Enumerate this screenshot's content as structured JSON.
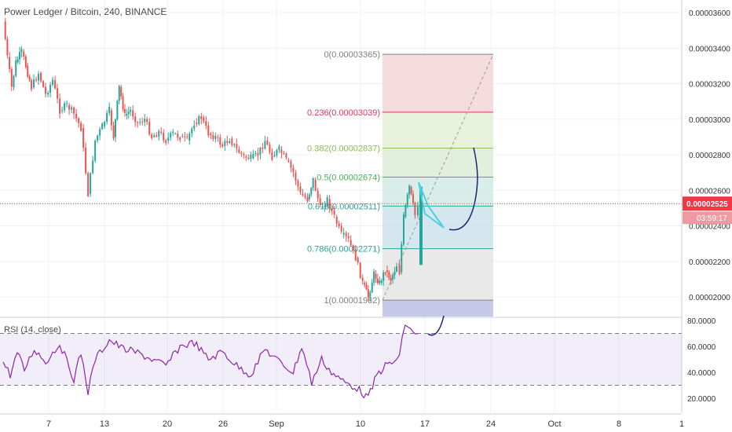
{
  "header": {
    "title": "Power Ledger / Bitcoin, 240, BINANCE"
  },
  "rsi": {
    "title": "RSI (14, close)"
  },
  "chart_data": {
    "type": "candlestick",
    "price_axis": {
      "labels": [
        "0.00003600",
        "0.00003400",
        "0.00003200",
        "0.00003000",
        "0.00002800",
        "0.00002600",
        "0.00002400",
        "0.00002200",
        "0.00002000"
      ],
      "values": [
        3.6e-05,
        3.4e-05,
        3.2e-05,
        3e-05,
        2.8e-05,
        2.6e-05,
        2.4e-05,
        2.2e-05,
        2e-05
      ]
    },
    "current_price": {
      "label": "0.00002525",
      "value": 2.525e-05,
      "countdown": "03:59:17",
      "color": "#f23645"
    },
    "rsi_axis": {
      "labels": [
        "80.0000",
        "60.0000",
        "40.0000",
        "20.0000"
      ],
      "values": [
        80,
        60,
        40,
        20
      ],
      "band": [
        30,
        70
      ]
    },
    "x_axis": {
      "labels": [
        "7",
        "13",
        "20",
        "26",
        "Sep",
        "10",
        "17",
        "24",
        "Oct",
        "8",
        "1"
      ]
    },
    "fib_levels": [
      {
        "label": "0(0.00003365)",
        "value": 3.365e-05,
        "color": "#808080"
      },
      {
        "label": "0.236(0.00003039)",
        "value": 3.039e-05,
        "color": "#e0395a"
      },
      {
        "label": "0.382(0.00002837)",
        "value": 2.837e-05,
        "color": "#8bbf52"
      },
      {
        "label": "0.5(0.00002674)",
        "value": 2.674e-05,
        "color": "#4caf50"
      },
      {
        "label": "0.618(0.00002511)",
        "value": 2.511e-05,
        "color": "#26a69a"
      },
      {
        "label": "0.786(0.00002271)",
        "value": 2.271e-05,
        "color": "#26a69a"
      },
      {
        "label": "1(0.00001982)",
        "value": 1.982e-05,
        "color": "#808080"
      }
    ],
    "price_path": [
      [
        3.55e-05,
        0
      ],
      [
        3.35e-05,
        3
      ],
      [
        3.18e-05,
        6
      ],
      [
        3.32e-05,
        9
      ],
      [
        3.38e-05,
        13
      ],
      [
        3.3e-05,
        16
      ],
      [
        3.18e-05,
        20
      ],
      [
        3.26e-05,
        25
      ],
      [
        3.14e-05,
        30
      ],
      [
        3.22e-05,
        35
      ],
      [
        3.05e-05,
        40
      ],
      [
        3.08e-05,
        45
      ],
      [
        3.03e-05,
        50
      ],
      [
        2.95e-05,
        55
      ],
      [
        2.58e-05,
        60
      ],
      [
        2.88e-05,
        65
      ],
      [
        2.96e-05,
        70
      ],
      [
        3.05e-05,
        75
      ],
      [
        2.9e-05,
        78
      ],
      [
        3.18e-05,
        82
      ],
      [
        3.02e-05,
        86
      ],
      [
        3.05e-05,
        90
      ],
      [
        2.98e-05,
        95
      ],
      [
        3e-05,
        100
      ],
      [
        2.9e-05,
        105
      ],
      [
        2.93e-05,
        110
      ],
      [
        2.88e-05,
        115
      ],
      [
        2.92e-05,
        120
      ],
      [
        2.9e-05,
        125
      ],
      [
        2.88e-05,
        130
      ],
      [
        2.98e-05,
        135
      ],
      [
        3.01e-05,
        140
      ],
      [
        2.92e-05,
        145
      ],
      [
        2.9e-05,
        150
      ],
      [
        2.85e-05,
        155
      ],
      [
        2.89e-05,
        160
      ],
      [
        2.83e-05,
        165
      ],
      [
        2.79e-05,
        170
      ],
      [
        2.78e-05,
        175
      ],
      [
        2.8e-05,
        180
      ],
      [
        2.88e-05,
        185
      ],
      [
        2.79e-05,
        190
      ],
      [
        2.83e-05,
        195
      ],
      [
        2.77e-05,
        200
      ],
      [
        2.7e-05,
        205
      ],
      [
        2.58e-05,
        210
      ],
      [
        2.55e-05,
        215
      ],
      [
        2.66e-05,
        219
      ],
      [
        2.5e-05,
        224
      ],
      [
        2.55e-05,
        229
      ],
      [
        2.45e-05,
        234
      ],
      [
        2.35e-05,
        239
      ],
      [
        2.32e-05,
        244
      ],
      [
        2.22e-05,
        249
      ],
      [
        2.08e-05,
        254
      ],
      [
        2e-05,
        258
      ],
      [
        2.13e-05,
        262
      ],
      [
        2.08e-05,
        266
      ],
      [
        2.15e-05,
        270
      ],
      [
        2.1e-05,
        274
      ],
      [
        2.18e-05,
        278
      ],
      [
        2.14e-05,
        280
      ],
      [
        2.45e-05,
        283
      ],
      [
        2.62e-05,
        287
      ],
      [
        2.46e-05,
        291
      ],
      [
        2.52e-05,
        293
      ]
    ],
    "rsi_path": [
      [
        48,
        0
      ],
      [
        38,
        5
      ],
      [
        55,
        10
      ],
      [
        42,
        15
      ],
      [
        58,
        22
      ],
      [
        48,
        30
      ],
      [
        62,
        40
      ],
      [
        35,
        50
      ],
      [
        55,
        55
      ],
      [
        25,
        60
      ],
      [
        50,
        65
      ],
      [
        65,
        75
      ],
      [
        58,
        85
      ],
      [
        55,
        95
      ],
      [
        50,
        105
      ],
      [
        45,
        115
      ],
      [
        60,
        125
      ],
      [
        63,
        135
      ],
      [
        50,
        145
      ],
      [
        56,
        155
      ],
      [
        45,
        165
      ],
      [
        38,
        175
      ],
      [
        58,
        185
      ],
      [
        48,
        195
      ],
      [
        40,
        205
      ],
      [
        60,
        211
      ],
      [
        32,
        218
      ],
      [
        50,
        225
      ],
      [
        40,
        232
      ],
      [
        33,
        240
      ],
      [
        28,
        250
      ],
      [
        20,
        258
      ],
      [
        38,
        264
      ],
      [
        45,
        270
      ],
      [
        48,
        276
      ],
      [
        52,
        280
      ],
      [
        78,
        284
      ],
      [
        72,
        288
      ],
      [
        70,
        293
      ]
    ]
  }
}
